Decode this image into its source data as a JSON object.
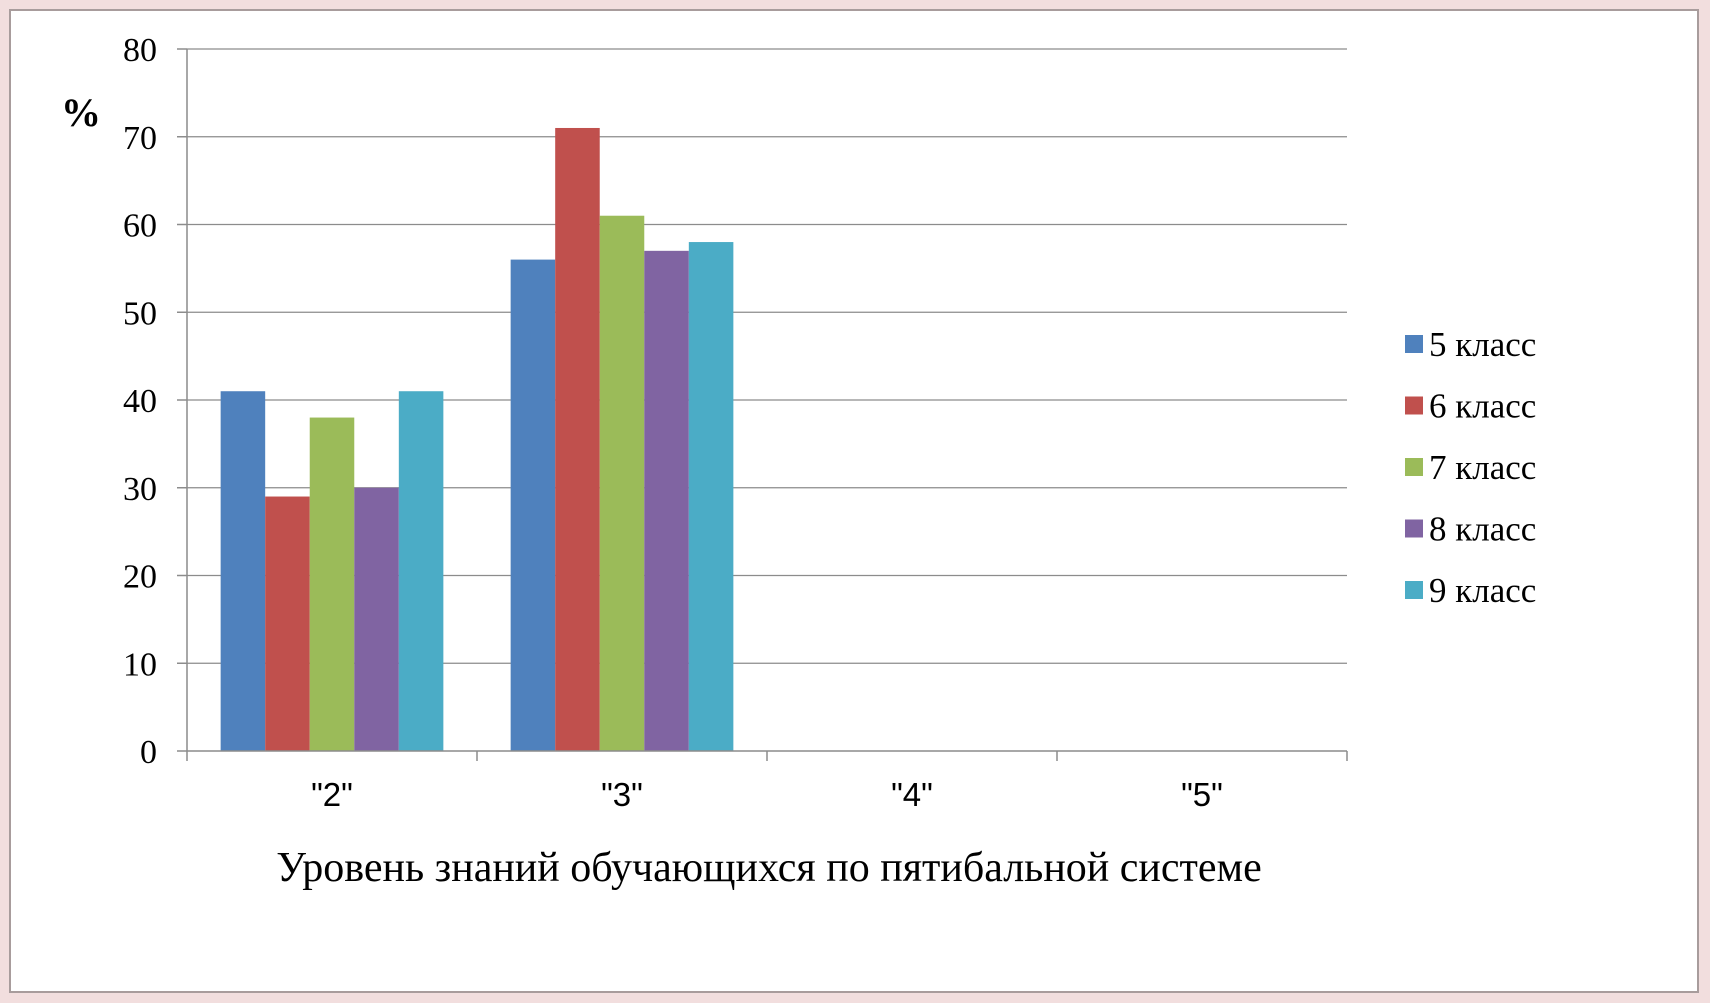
{
  "chart_data": {
    "type": "bar",
    "title": "",
    "ylabel": "%",
    "xlabel": "Уровень знаний обучающихся по пятибальной системе",
    "categories": [
      "\"2\"",
      "\"3\"",
      "\"4\"",
      "\"5\""
    ],
    "ylim": [
      0,
      80
    ],
    "yticks": [
      0,
      10,
      20,
      30,
      40,
      50,
      60,
      70,
      80
    ],
    "grid": true,
    "legend_position": "right",
    "series": [
      {
        "name": "5 класс",
        "color": "#4f81bd",
        "values": [
          41,
          56,
          null,
          null
        ]
      },
      {
        "name": "6 класс",
        "color": "#c0504d",
        "values": [
          29,
          71,
          null,
          null
        ]
      },
      {
        "name": "7 класс",
        "color": "#9bbb59",
        "values": [
          38,
          61,
          null,
          null
        ]
      },
      {
        "name": "8 класс",
        "color": "#8064a2",
        "values": [
          30,
          57,
          null,
          null
        ]
      },
      {
        "name": "9 класс",
        "color": "#4bacc6",
        "values": [
          41,
          58,
          null,
          null
        ]
      }
    ]
  }
}
